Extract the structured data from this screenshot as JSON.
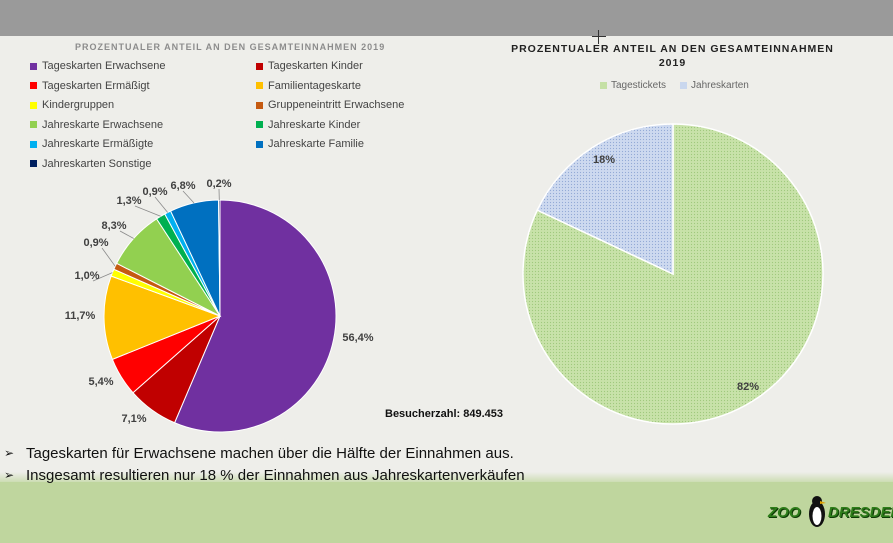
{
  "chart_data": [
    {
      "type": "pie",
      "title": "PROZENTUALER ANTEIL AN DEN GESAMTEINNAHMEN 2019",
      "legend_position": "top",
      "slices": [
        {
          "name": "Tageskarten Erwachsene",
          "value": 56.4,
          "label": "56,4%",
          "color": "#7030a0"
        },
        {
          "name": "Tageskarten Kinder",
          "value": 7.1,
          "label": "7,1%",
          "color": "#c00000"
        },
        {
          "name": "Tageskarten Ermäßigt",
          "value": 5.4,
          "label": "5,4%",
          "color": "#ff0000"
        },
        {
          "name": "Familientageskarte",
          "value": 11.7,
          "label": "11,7%",
          "color": "#ffc000"
        },
        {
          "name": "Kindergruppen",
          "value": 1.0,
          "label": "1,0%",
          "color": "#ffff00"
        },
        {
          "name": "Gruppeneintritt Erwachsene",
          "value": 0.9,
          "label": "0,9%",
          "color": "#c55a11"
        },
        {
          "name": "Jahreskarte Erwachsene",
          "value": 8.3,
          "label": "8,3%",
          "color": "#92d050"
        },
        {
          "name": "Jahreskarte Kinder",
          "value": 1.3,
          "label": "1,3%",
          "color": "#00b050"
        },
        {
          "name": "Jahreskarte Ermäßigte",
          "value": 0.9,
          "label": "0,9%",
          "color": "#00b0f0"
        },
        {
          "name": "Jahreskarte Familie",
          "value": 6.8,
          "label": "6,8%",
          "color": "#0070c0"
        },
        {
          "name": "Jahreskarten Sonstige",
          "value": 0.2,
          "label": "0,2%",
          "color": "#002060"
        }
      ]
    },
    {
      "type": "pie",
      "title": "PROZENTUALER ANTEIL AN DEN GESAMTEINNAHMEN 2019",
      "legend_position": "top",
      "slices": [
        {
          "name": "Tagestickets",
          "value": 82,
          "label": "82%",
          "color": "#c5e0a5"
        },
        {
          "name": "Jahreskarten",
          "value": 18,
          "label": "18%",
          "color": "#c9d7ee"
        }
      ]
    }
  ],
  "visitors": "Besucherzahl: 849.453",
  "bullets": [
    "Tageskarten für Erwachsene machen über die Hälfte der Einnahmen aus.",
    "Insgesamt resultieren nur 18 % der Einnahmen aus Jahreskartenverkäufen"
  ],
  "bullet_icon": "arrow-bullet-icon",
  "logo": {
    "left": "ZOO",
    "right": "DRESDEN"
  }
}
